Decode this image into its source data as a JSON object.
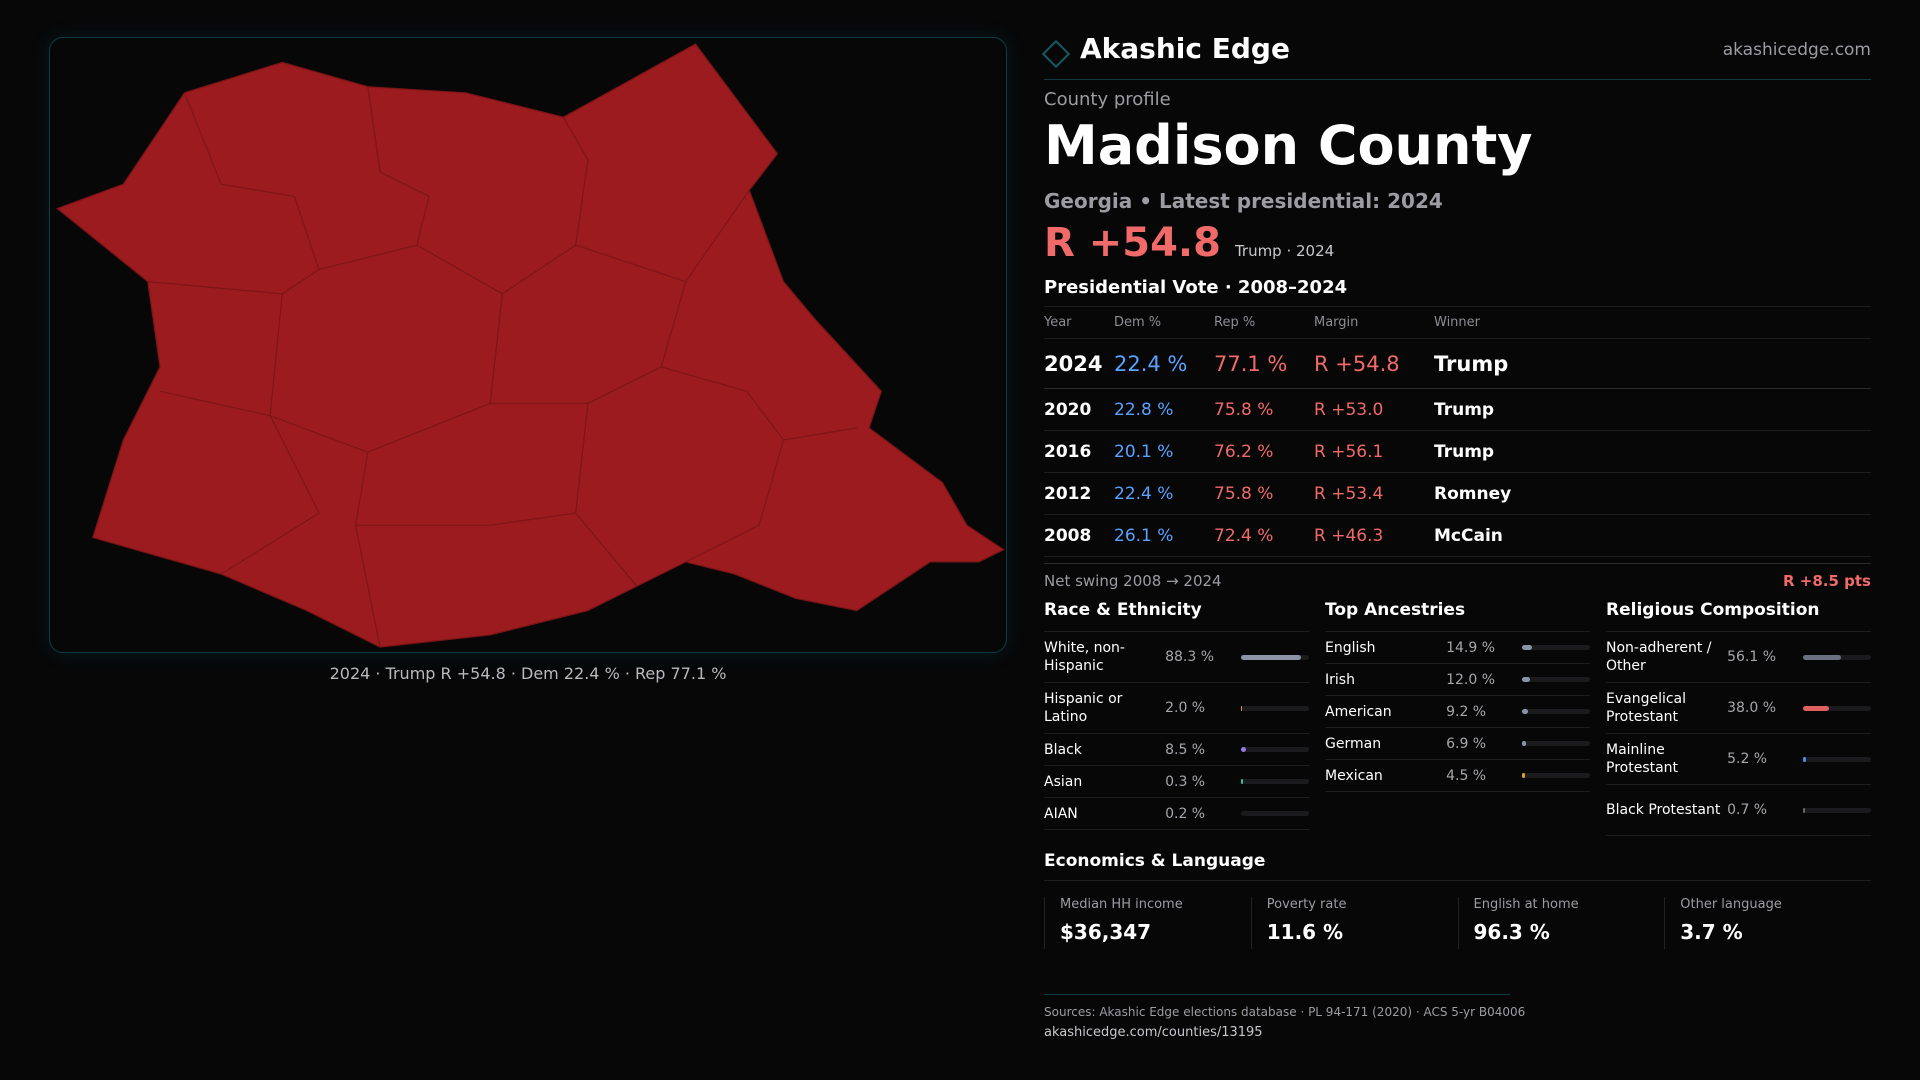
{
  "brand": {
    "name": "Akashic Edge",
    "site": "akashicedge.com"
  },
  "profile": {
    "kicker": "County profile",
    "county": "Madison County",
    "subtitle": "Georgia • Latest presidential: 2024",
    "headline_margin": "R +54.8",
    "headline_note": "Trump · 2024"
  },
  "map": {
    "caption": "2024 · Trump R +54.8 · Dem 22.4 % · Rep 77.1 %",
    "fill_color": "#9b1b1e"
  },
  "vote": {
    "title": "Presidential Vote · 2008–2024",
    "columns": [
      "Year",
      "Dem %",
      "Rep %",
      "Margin",
      "Winner"
    ],
    "rows": [
      {
        "year": "2024",
        "dem": "22.4 %",
        "rep": "77.1 %",
        "margin": "R +54.8",
        "winner": "Trump"
      },
      {
        "year": "2020",
        "dem": "22.8 %",
        "rep": "75.8 %",
        "margin": "R +53.0",
        "winner": "Trump"
      },
      {
        "year": "2016",
        "dem": "20.1 %",
        "rep": "76.2 %",
        "margin": "R +56.1",
        "winner": "Trump"
      },
      {
        "year": "2012",
        "dem": "22.4 %",
        "rep": "75.8 %",
        "margin": "R +53.4",
        "winner": "Romney"
      },
      {
        "year": "2008",
        "dem": "26.1 %",
        "rep": "72.4 %",
        "margin": "R +46.3",
        "winner": "McCain"
      }
    ],
    "swing_label": "Net swing 2008 → 2024",
    "swing_value": "R +8.5 pts"
  },
  "sections": [
    {
      "title": "Race & Ethnicity",
      "items": [
        {
          "label": "White, non-Hispanic",
          "value": "88.3 %",
          "pct": 88.3,
          "color": "#8a94a6"
        },
        {
          "label": "Hispanic or Latino",
          "value": "2.0 %",
          "pct": 2.0,
          "color": "#e0a020"
        },
        {
          "label": "Black",
          "value": "8.5 %",
          "pct": 8.5,
          "color": "#9a7ae6"
        },
        {
          "label": "Asian",
          "value": "0.3 %",
          "pct": 0.3,
          "color": "#2fc0a0"
        },
        {
          "label": "AIAN",
          "value": "0.2 %",
          "pct": 0.2,
          "color": "#666"
        }
      ]
    },
    {
      "title": "Top Ancestries",
      "items": [
        {
          "label": "English",
          "value": "14.9 %",
          "pct": 14.9,
          "color": "#8a94a6"
        },
        {
          "label": "Irish",
          "value": "12.0 %",
          "pct": 12.0,
          "color": "#8a94a6"
        },
        {
          "label": "American",
          "value": "9.2 %",
          "pct": 9.2,
          "color": "#8a94a6"
        },
        {
          "label": "German",
          "value": "6.9 %",
          "pct": 6.9,
          "color": "#8a94a6"
        },
        {
          "label": "Mexican",
          "value": "4.5 %",
          "pct": 4.5,
          "color": "#e0a020"
        }
      ]
    },
    {
      "title": "Religious Composition",
      "items": [
        {
          "label": "Non-adherent / Other",
          "value": "56.1 %",
          "pct": 56.1,
          "color": "#6b7080"
        },
        {
          "label": "Evangelical Protestant",
          "value": "38.0 %",
          "pct": 38.0,
          "color": "#e06060"
        },
        {
          "label": "Mainline Protestant",
          "value": "5.2 %",
          "pct": 5.2,
          "color": "#4a90f0"
        },
        {
          "label": "Black Protestant",
          "value": "0.7 %",
          "pct": 0.7,
          "color": "#666"
        }
      ]
    }
  ],
  "econ": {
    "title": "Economics & Language",
    "stats": [
      {
        "label": "Median HH income",
        "value": "$36,347"
      },
      {
        "label": "Poverty rate",
        "value": "11.6 %"
      },
      {
        "label": "English at home",
        "value": "96.3 %"
      },
      {
        "label": "Other language",
        "value": "3.7 %"
      }
    ]
  },
  "footer": {
    "sources": "Sources: Akashic Edge elections database · PL 94-171 (2020) · ACS 5-yr B04006",
    "url": "akashicedge.com/counties/13195"
  }
}
